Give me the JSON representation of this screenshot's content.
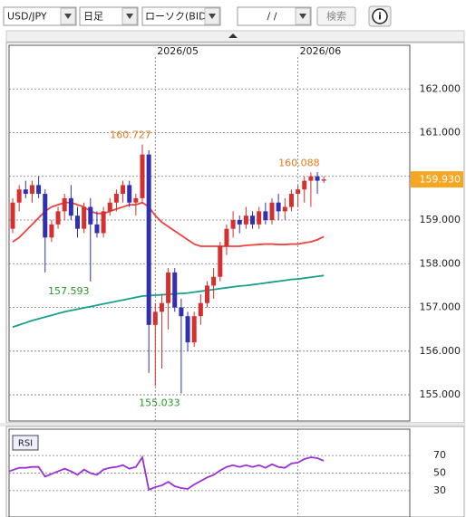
{
  "toolbar": {
    "symbol": "USD/JPY",
    "period": "日足",
    "chart_type": "ローソク(BID)",
    "date": "/  /",
    "search": "検索",
    "info": "i"
  },
  "chart_data": [
    {
      "type": "candlestick",
      "categories": [
        null,
        null,
        null,
        null,
        null,
        null,
        null,
        null,
        null,
        null,
        null,
        null,
        null,
        null,
        null,
        null,
        null,
        null,
        null,
        null,
        null,
        null,
        "2026/05",
        null,
        null,
        null,
        null,
        null,
        null,
        null,
        null,
        null,
        null,
        null,
        null,
        null,
        null,
        null,
        null,
        null,
        null,
        null,
        null,
        null,
        "2026/06",
        null,
        null,
        null,
        null
      ],
      "open": [
        158.8,
        159.4,
        159.7,
        159.6,
        159.8,
        159.6,
        158.6,
        158.9,
        159.2,
        159.5,
        159.1,
        158.8,
        159.3,
        158.9,
        158.7,
        159.2,
        159.4,
        159.6,
        159.8,
        159.4,
        159.5,
        160.5,
        156.6,
        156.9,
        157.1,
        157.8,
        157.0,
        156.8,
        156.2,
        156.8,
        157.1,
        157.5,
        157.7,
        158.4,
        158.8,
        159.0,
        158.9,
        159.1,
        158.9,
        159.2,
        159.0,
        159.4,
        159.2,
        159.3,
        159.6,
        159.7,
        159.9,
        160.0,
        159.9
      ],
      "high": [
        159.5,
        159.8,
        159.9,
        159.9,
        160.0,
        159.7,
        159.0,
        159.3,
        159.6,
        159.8,
        159.3,
        159.4,
        159.5,
        159.2,
        159.3,
        159.5,
        159.7,
        159.9,
        159.9,
        159.6,
        160.727,
        160.6,
        157.1,
        157.3,
        157.9,
        157.9,
        157.2,
        156.9,
        156.9,
        157.3,
        157.6,
        157.9,
        158.5,
        158.9,
        159.2,
        159.1,
        159.3,
        159.2,
        159.3,
        159.4,
        159.5,
        159.6,
        159.5,
        159.7,
        159.8,
        160.0,
        160.088,
        160.1,
        160.0
      ],
      "low": [
        158.7,
        159.2,
        159.5,
        159.4,
        159.5,
        157.8,
        158.5,
        158.8,
        159.0,
        159.0,
        158.6,
        158.7,
        157.593,
        158.6,
        158.6,
        159.1,
        159.2,
        159.4,
        159.3,
        159.1,
        159.4,
        155.5,
        155.2,
        155.6,
        156.5,
        156.9,
        155.033,
        156.0,
        156.1,
        156.6,
        157.0,
        157.2,
        157.6,
        158.2,
        158.6,
        158.7,
        158.8,
        158.8,
        158.8,
        158.9,
        158.9,
        159.0,
        159.0,
        159.2,
        159.3,
        159.4,
        159.3,
        159.6,
        159.85
      ],
      "close": [
        159.4,
        159.7,
        159.6,
        159.8,
        159.6,
        158.6,
        158.9,
        159.2,
        159.5,
        159.1,
        158.8,
        159.3,
        158.9,
        158.7,
        159.2,
        159.4,
        159.6,
        159.8,
        159.4,
        159.5,
        160.5,
        156.6,
        156.9,
        157.1,
        157.8,
        157.0,
        156.8,
        156.2,
        156.8,
        157.1,
        157.5,
        157.7,
        158.4,
        158.8,
        159.0,
        158.9,
        159.1,
        158.9,
        159.2,
        159.0,
        159.4,
        159.2,
        159.3,
        159.6,
        159.7,
        159.9,
        160.0,
        159.9,
        159.93
      ],
      "up_color": "#d62f2f",
      "down_color": "#3030b0",
      "lines": [
        {
          "color": "#f0413c",
          "values": [
            158.5,
            158.6,
            158.75,
            158.9,
            159.05,
            159.2,
            159.3,
            159.35,
            159.4,
            159.4,
            159.35,
            159.3,
            159.2,
            159.15,
            159.15,
            159.2,
            159.25,
            159.3,
            159.35,
            159.35,
            159.4,
            159.3,
            159.1,
            158.95,
            158.85,
            158.75,
            158.65,
            158.55,
            158.45,
            158.4,
            158.4,
            158.4,
            158.4,
            158.4,
            158.4,
            158.4,
            158.42,
            158.43,
            158.44,
            158.45,
            158.45,
            158.44,
            158.44,
            158.45,
            158.45,
            158.48,
            158.5,
            158.55,
            158.62
          ]
        },
        {
          "color": "#17a090",
          "values": [
            156.55,
            156.6,
            156.65,
            156.7,
            156.74,
            156.78,
            156.82,
            156.86,
            156.9,
            156.93,
            156.96,
            156.99,
            157.02,
            157.05,
            157.08,
            157.11,
            157.14,
            157.17,
            157.2,
            157.23,
            157.26,
            157.27,
            157.28,
            157.29,
            157.3,
            157.31,
            157.32,
            157.33,
            157.35,
            157.37,
            157.39,
            157.41,
            157.43,
            157.45,
            157.47,
            157.49,
            157.5,
            157.52,
            157.54,
            157.56,
            157.58,
            157.6,
            157.62,
            157.64,
            157.65,
            157.67,
            157.69,
            157.71,
            157.73
          ]
        }
      ],
      "annotations": [
        {
          "value": 160.727,
          "label": "160.727",
          "color": "#e07b20"
        },
        {
          "value": 160.088,
          "label": "160.088",
          "color": "#e07b20"
        },
        {
          "value": 157.593,
          "label": "157.593",
          "color": "#2a9a2a"
        },
        {
          "value": 155.033,
          "label": "155.033",
          "color": "#2a9a2a"
        }
      ],
      "last_price": {
        "value": 159.93,
        "label": "159.930",
        "color": "#f5a623"
      },
      "ylim": [
        154.4,
        163.0
      ],
      "yticks": [
        {
          "value": 162,
          "label": "162.000"
        },
        {
          "value": 161,
          "label": "161.000"
        },
        {
          "value": 160,
          "label": "160.000"
        },
        {
          "value": 159,
          "label": "159.000"
        },
        {
          "value": 158,
          "label": "158.000"
        },
        {
          "value": 157,
          "label": "157.000"
        },
        {
          "value": 156,
          "label": "156.000"
        },
        {
          "value": 155,
          "label": "155.000"
        }
      ],
      "grid": true
    },
    {
      "type": "line",
      "title": "RSI",
      "color": "#9b30d9",
      "values": [
        52,
        56,
        56,
        57,
        57,
        46,
        49,
        52,
        55,
        52,
        48,
        54,
        50,
        48,
        54,
        56,
        57,
        59,
        55,
        57,
        68,
        31,
        34,
        36,
        40,
        35,
        33,
        32,
        37,
        41,
        45,
        48,
        53,
        57,
        59,
        57,
        59,
        57,
        59,
        56,
        60,
        57,
        56,
        61,
        62,
        66,
        68,
        67,
        64
      ],
      "ylim": [
        0,
        100
      ],
      "yticks": [
        70,
        50,
        30
      ],
      "grid": true
    }
  ]
}
